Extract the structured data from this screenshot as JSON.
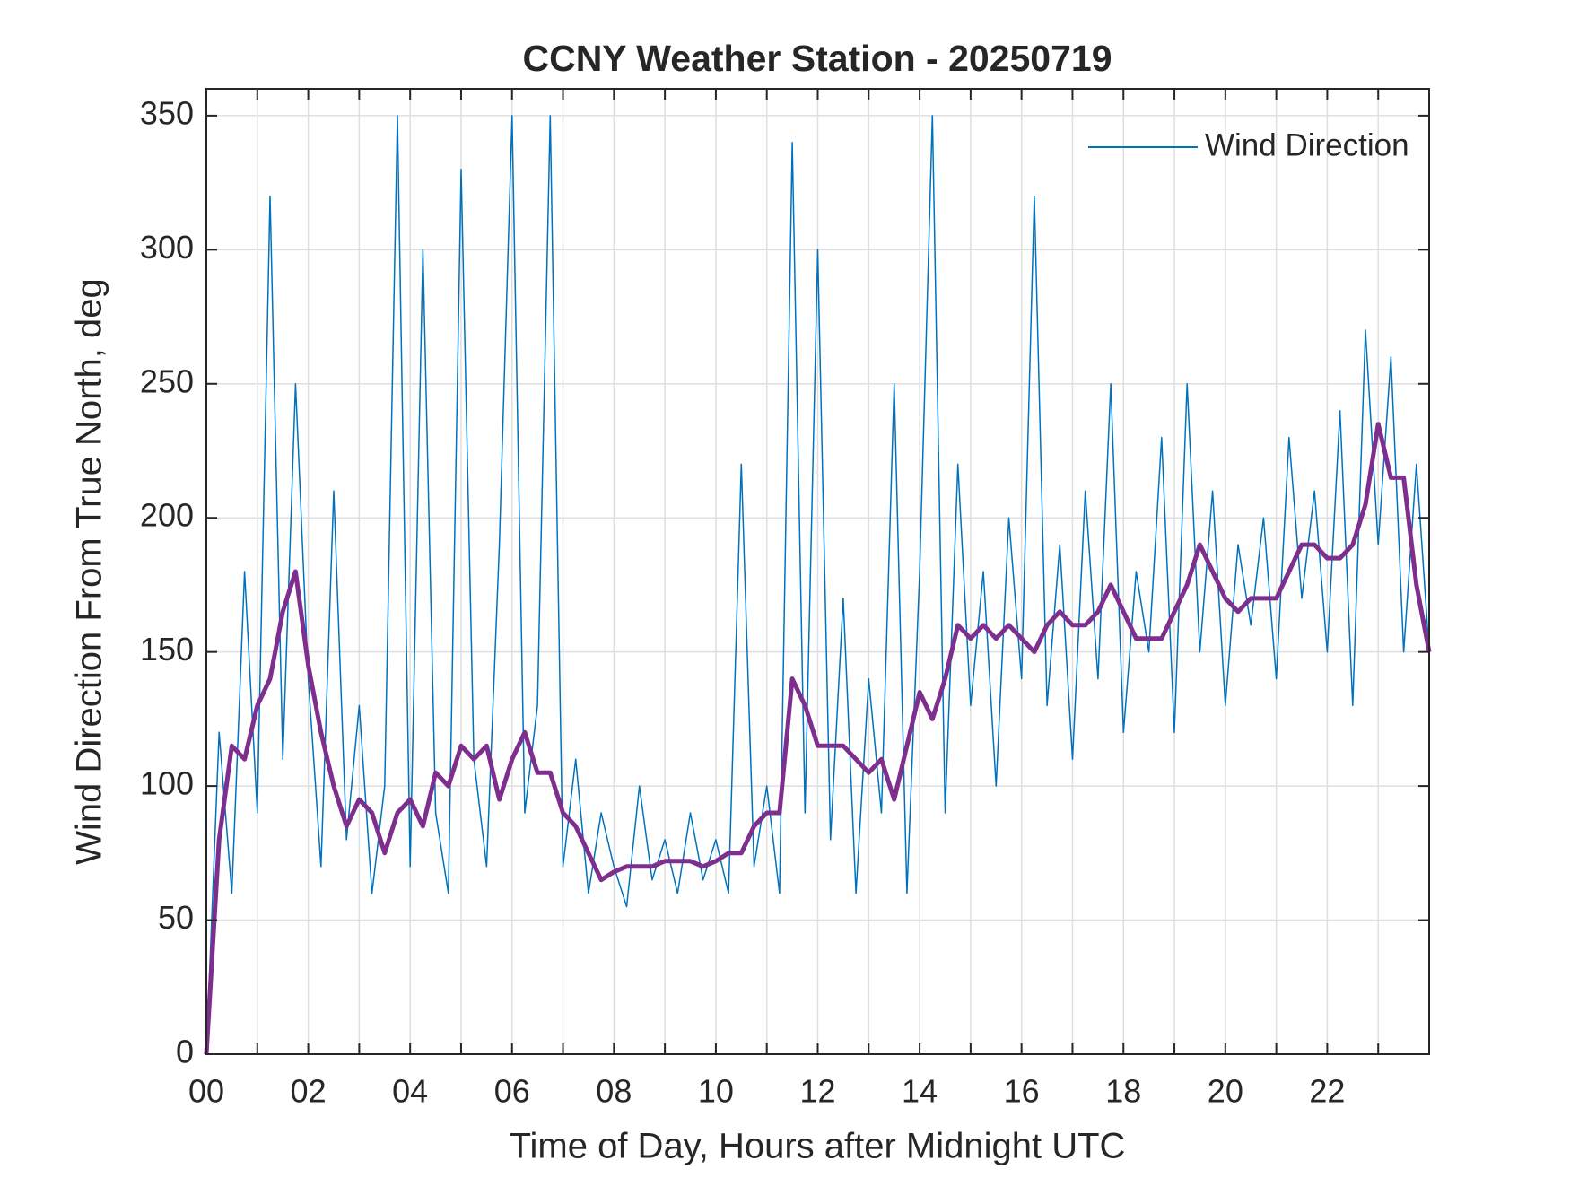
{
  "chart_data": {
    "type": "line",
    "title": "CCNY Weather Station - 20250719",
    "x_label": "Time of Day, Hours after Midnight UTC",
    "y_label": "Wind Direction From True North, deg",
    "xlim": [
      0,
      24
    ],
    "ylim": [
      0,
      360
    ],
    "xticks": [
      {
        "value": 0,
        "label": "00"
      },
      {
        "value": 2,
        "label": "02"
      },
      {
        "value": 4,
        "label": "04"
      },
      {
        "value": 6,
        "label": "06"
      },
      {
        "value": 8,
        "label": "08"
      },
      {
        "value": 10,
        "label": "10"
      },
      {
        "value": 12,
        "label": "12"
      },
      {
        "value": 14,
        "label": "14"
      },
      {
        "value": 16,
        "label": "16"
      },
      {
        "value": 18,
        "label": "18"
      },
      {
        "value": 20,
        "label": "20"
      },
      {
        "value": 22,
        "label": "22"
      }
    ],
    "xminorticks": [
      1,
      3,
      5,
      7,
      9,
      11,
      13,
      15,
      17,
      19,
      21,
      23
    ],
    "yticks": [
      0,
      50,
      100,
      150,
      200,
      250,
      300,
      350
    ],
    "grid": true,
    "legend": "upper right",
    "x": [
      0,
      0.25,
      0.5,
      0.75,
      1,
      1.25,
      1.5,
      1.75,
      2,
      2.25,
      2.5,
      2.75,
      3,
      3.25,
      3.5,
      3.75,
      4,
      4.25,
      4.5,
      4.75,
      5,
      5.25,
      5.5,
      5.75,
      6,
      6.25,
      6.5,
      6.75,
      7,
      7.25,
      7.5,
      7.75,
      8,
      8.25,
      8.5,
      8.75,
      9,
      9.25,
      9.5,
      9.75,
      10,
      10.25,
      10.5,
      10.75,
      11,
      11.25,
      11.5,
      11.75,
      12,
      12.25,
      12.5,
      12.75,
      13,
      13.25,
      13.5,
      13.75,
      14,
      14.25,
      14.5,
      14.75,
      15,
      15.25,
      15.5,
      15.75,
      16,
      16.25,
      16.5,
      16.75,
      17,
      17.25,
      17.5,
      17.75,
      18,
      18.25,
      18.5,
      18.75,
      19,
      19.25,
      19.5,
      19.75,
      20,
      20.25,
      20.5,
      20.75,
      21,
      21.25,
      21.5,
      21.75,
      22,
      22.25,
      22.5,
      22.75,
      23,
      23.25,
      23.5,
      23.75,
      24
    ],
    "series": [
      {
        "name": "Wind Direction",
        "color": "#0072bd",
        "width": 1.5,
        "values": [
          0,
          120,
          60,
          180,
          90,
          320,
          110,
          250,
          140,
          70,
          210,
          80,
          130,
          60,
          100,
          350,
          70,
          300,
          90,
          60,
          330,
          110,
          70,
          190,
          350,
          90,
          130,
          350,
          70,
          110,
          60,
          90,
          70,
          55,
          100,
          65,
          80,
          60,
          90,
          65,
          80,
          60,
          220,
          70,
          100,
          60,
          340,
          90,
          300,
          80,
          170,
          60,
          140,
          90,
          250,
          60,
          180,
          350,
          90,
          220,
          130,
          180,
          100,
          200,
          140,
          320,
          130,
          190,
          110,
          210,
          140,
          250,
          120,
          180,
          150,
          230,
          120,
          250,
          150,
          210,
          130,
          190,
          160,
          200,
          140,
          230,
          170,
          210,
          150,
          240,
          130,
          270,
          190,
          260,
          150,
          220,
          150
        ]
      },
      {
        "color": "#7e2f8e",
        "width": 5,
        "values": [
          0,
          80,
          115,
          110,
          130,
          140,
          165,
          180,
          145,
          120,
          100,
          85,
          95,
          90,
          75,
          90,
          95,
          85,
          105,
          100,
          115,
          110,
          115,
          95,
          110,
          120,
          105,
          105,
          90,
          85,
          75,
          65,
          68,
          70,
          70,
          70,
          72,
          72,
          72,
          70,
          72,
          75,
          75,
          85,
          90,
          90,
          140,
          130,
          115,
          115,
          115,
          110,
          105,
          110,
          95,
          115,
          135,
          125,
          140,
          160,
          155,
          160,
          155,
          160,
          155,
          150,
          160,
          165,
          160,
          160,
          165,
          175,
          165,
          155,
          155,
          155,
          165,
          175,
          190,
          180,
          170,
          165,
          170,
          170,
          170,
          180,
          190,
          190,
          185,
          185,
          190,
          205,
          235,
          215,
          215,
          175,
          150
        ]
      }
    ]
  }
}
